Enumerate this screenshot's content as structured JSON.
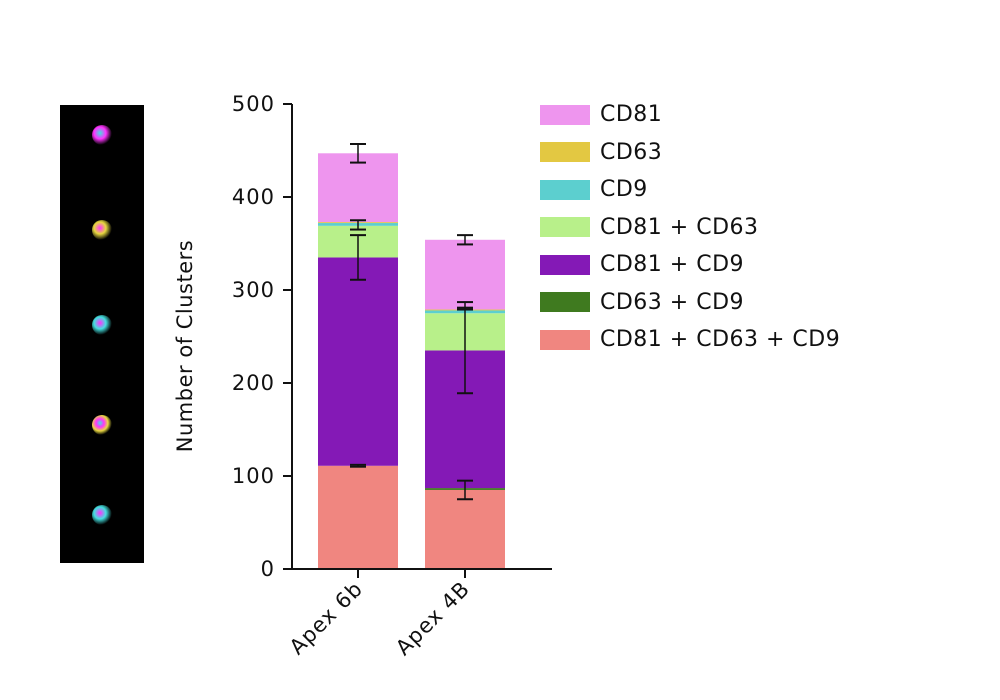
{
  "chart_data": {
    "type": "bar",
    "stacked": true,
    "categories": [
      "Apex 6b",
      "Apex 4B"
    ],
    "ylabel": "Number of Clusters",
    "xlabel": "",
    "ylim": [
      0,
      500
    ],
    "yticks": [
      "0",
      "100",
      "200",
      "300",
      "400",
      "500"
    ],
    "legend_position": "right",
    "series": [
      {
        "name": "CD81+CD63+CD9",
        "color": "#f08680",
        "values": [
          111,
          85
        ],
        "error": [
          1,
          10
        ]
      },
      {
        "name": "CD63+CD9",
        "color": "#3f7a1f",
        "values": [
          0,
          2
        ],
        "error": [
          null,
          null
        ]
      },
      {
        "name": "CD81+CD9",
        "color": "#8419b6",
        "values": [
          224,
          148
        ],
        "error": [
          24,
          46
        ]
      },
      {
        "name": "CD81+CD63",
        "color": "#b8f08a",
        "values": [
          34,
          40
        ],
        "error": [
          null,
          null
        ]
      },
      {
        "name": "CD9",
        "color": "#5ccfcf",
        "values": [
          3,
          3
        ],
        "error": [
          null,
          null
        ]
      },
      {
        "name": "CD63",
        "color": "#e3c842",
        "values": [
          1,
          1
        ],
        "error": [
          null,
          null
        ]
      },
      {
        "name": "CD81",
        "color": "#ee95ee",
        "values": [
          74,
          75
        ],
        "error": [
          10,
          5
        ]
      }
    ],
    "layer_errors": [
      {
        "category": "Apex 6b",
        "value": 370,
        "error": 5
      },
      {
        "category": "Apex 4B",
        "value": 283,
        "error": 4
      }
    ],
    "legend": [
      {
        "label": "CD81",
        "color": "#ee95ee"
      },
      {
        "label": "CD63",
        "color": "#e3c842"
      },
      {
        "label": "CD9",
        "color": "#5ccfcf"
      },
      {
        "label": "CD81 + CD63",
        "color": "#b8f08a"
      },
      {
        "label": "CD81 + CD9",
        "color": "#8419b6"
      },
      {
        "label": "CD63 + CD9",
        "color": "#3f7a1f"
      },
      {
        "label": "CD81 + CD63 + CD9",
        "color": "#f08680"
      }
    ]
  }
}
